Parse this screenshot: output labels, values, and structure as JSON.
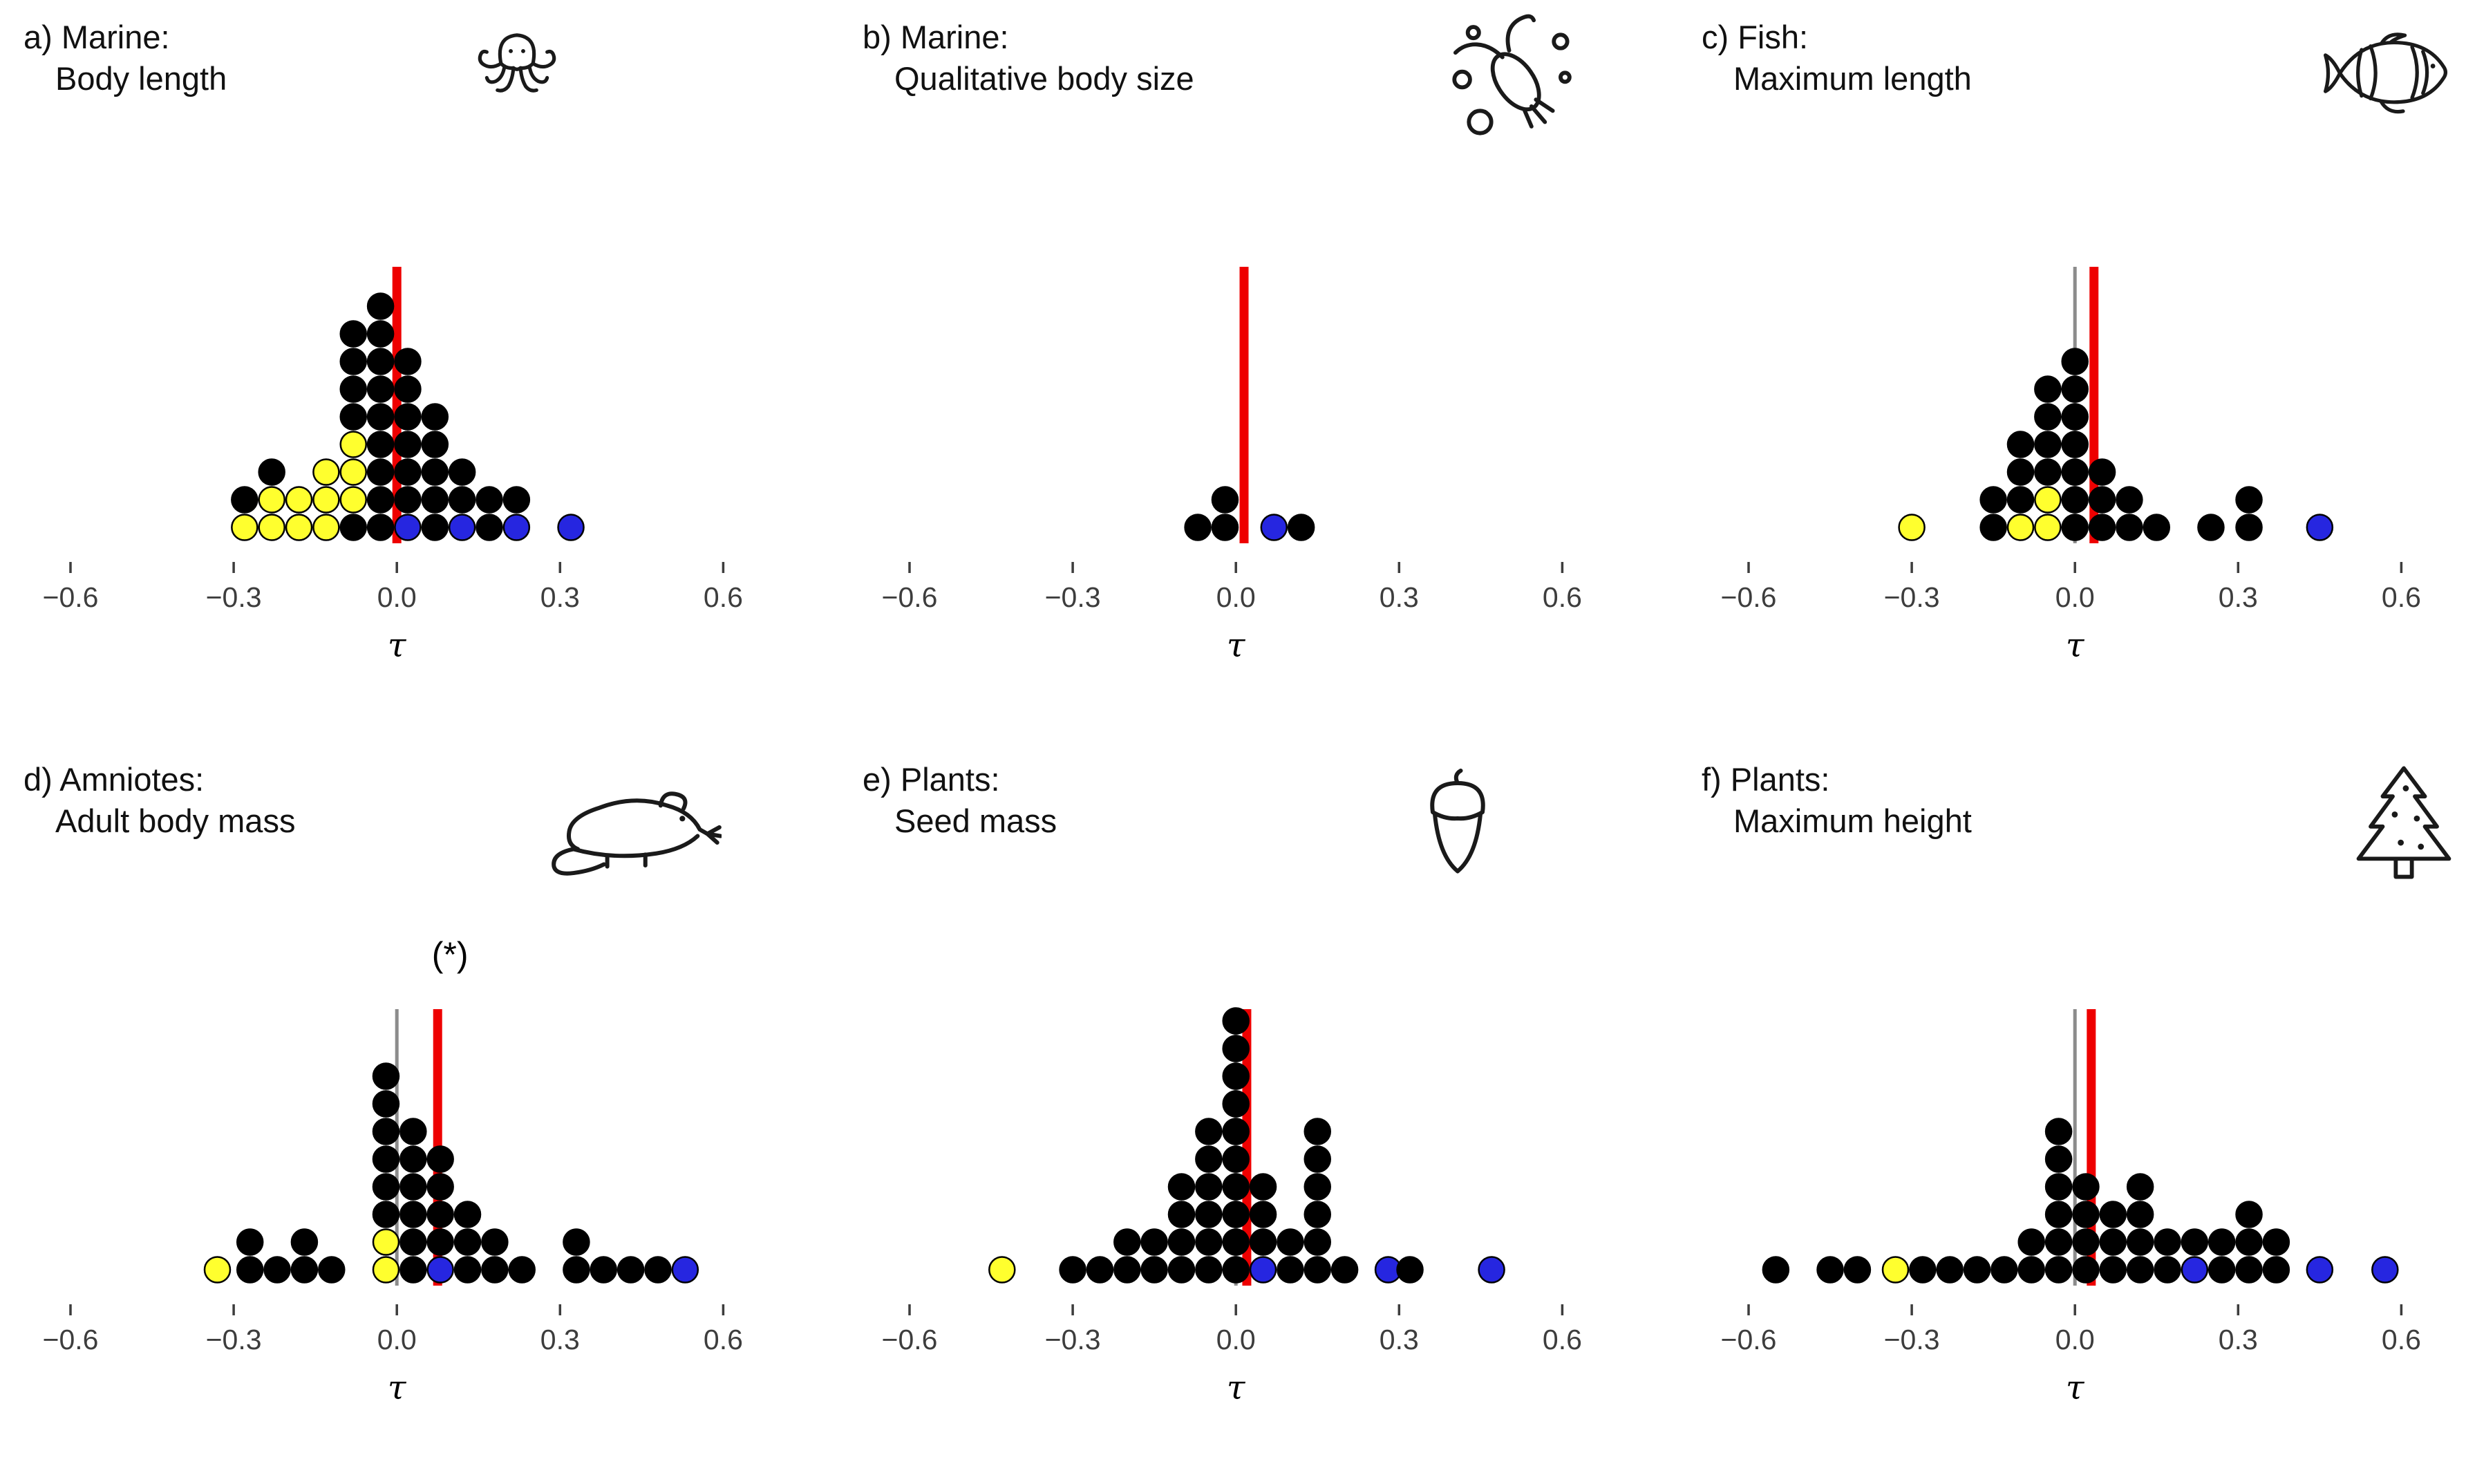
{
  "figure": {
    "tau_symbol": "τ",
    "colors": {
      "black": "#000000",
      "yellow": "#ffff2e",
      "blue": "#2626e0",
      "red_line": "#ee0000",
      "gray_line": "#8c8c8c",
      "tick": "#3d3d3d"
    }
  },
  "chart_data": [
    {
      "type": "scatter",
      "panel": "a",
      "title": "a) Marine:",
      "subtitle": "Body length",
      "icon": "octopus-icon",
      "xlabel": "τ",
      "xlim": [
        -0.75,
        0.7
      ],
      "xticks": [
        -0.6,
        -0.3,
        0.0,
        0.3,
        0.6
      ],
      "xtick_labels": [
        "−0.6",
        "−0.3",
        "0.0",
        "0.3",
        "0.6"
      ],
      "red_line_x": 0.0,
      "gray_line_x": null,
      "annotation": null,
      "annotation_x": null,
      "columns": [
        {
          "x": -0.28,
          "dots": [
            "yellow",
            "black"
          ]
        },
        {
          "x": -0.23,
          "dots": [
            "yellow",
            "yellow",
            "black"
          ]
        },
        {
          "x": -0.18,
          "dots": [
            "yellow",
            "yellow"
          ]
        },
        {
          "x": -0.13,
          "dots": [
            "yellow",
            "yellow",
            "yellow"
          ]
        },
        {
          "x": -0.08,
          "dots": [
            "black",
            "yellow",
            "yellow",
            "yellow",
            "black",
            "black",
            "black",
            "black"
          ]
        },
        {
          "x": -0.03,
          "dots": [
            "black",
            "black",
            "black",
            "black",
            "black",
            "black",
            "black",
            "black",
            "black"
          ]
        },
        {
          "x": 0.02,
          "dots": [
            "blue",
            "black",
            "black",
            "black",
            "black",
            "black",
            "black"
          ]
        },
        {
          "x": 0.07,
          "dots": [
            "black",
            "black",
            "black",
            "black",
            "black"
          ]
        },
        {
          "x": 0.12,
          "dots": [
            "blue",
            "black",
            "black"
          ]
        },
        {
          "x": 0.17,
          "dots": [
            "black",
            "black"
          ]
        },
        {
          "x": 0.22,
          "dots": [
            "blue",
            "black"
          ]
        },
        {
          "x": 0.32,
          "dots": [
            "blue"
          ]
        }
      ]
    },
    {
      "type": "scatter",
      "panel": "b",
      "title": "b) Marine:",
      "subtitle": "Qualitative body size",
      "icon": "plankton-icon",
      "xlabel": "τ",
      "xlim": [
        -0.75,
        0.7
      ],
      "xticks": [
        -0.6,
        -0.3,
        0.0,
        0.3,
        0.6
      ],
      "xtick_labels": [
        "−0.6",
        "−0.3",
        "0.0",
        "0.3",
        "0.6"
      ],
      "red_line_x": 0.015,
      "gray_line_x": null,
      "annotation": null,
      "annotation_x": null,
      "columns": [
        {
          "x": -0.07,
          "dots": [
            "black"
          ]
        },
        {
          "x": -0.02,
          "dots": [
            "black",
            "black"
          ]
        },
        {
          "x": 0.07,
          "dots": [
            "blue"
          ]
        },
        {
          "x": 0.12,
          "dots": [
            "black"
          ]
        }
      ]
    },
    {
      "type": "scatter",
      "panel": "c",
      "title": "c) Fish:",
      "subtitle": "Maximum length",
      "icon": "clownfish-icon",
      "xlabel": "τ",
      "xlim": [
        -0.75,
        0.7
      ],
      "xticks": [
        -0.6,
        -0.3,
        0.0,
        0.3,
        0.6
      ],
      "xtick_labels": [
        "−0.6",
        "−0.3",
        "0.0",
        "0.3",
        "0.6"
      ],
      "red_line_x": 0.035,
      "gray_line_x": 0.0,
      "annotation": null,
      "annotation_x": null,
      "columns": [
        {
          "x": -0.3,
          "dots": [
            "yellow"
          ]
        },
        {
          "x": -0.15,
          "dots": [
            "black",
            "black"
          ]
        },
        {
          "x": -0.1,
          "dots": [
            "yellow",
            "black",
            "black",
            "black"
          ]
        },
        {
          "x": -0.05,
          "dots": [
            "yellow",
            "yellow",
            "black",
            "black",
            "black",
            "black"
          ]
        },
        {
          "x": 0.0,
          "dots": [
            "black",
            "black",
            "black",
            "black",
            "black",
            "black",
            "black"
          ]
        },
        {
          "x": 0.05,
          "dots": [
            "black",
            "black",
            "black"
          ]
        },
        {
          "x": 0.1,
          "dots": [
            "black",
            "black"
          ]
        },
        {
          "x": 0.15,
          "dots": [
            "black"
          ]
        },
        {
          "x": 0.25,
          "dots": [
            "black"
          ]
        },
        {
          "x": 0.32,
          "dots": [
            "black",
            "black"
          ]
        },
        {
          "x": 0.45,
          "dots": [
            "blue"
          ]
        }
      ]
    },
    {
      "type": "scatter",
      "panel": "d",
      "title": "d) Amniotes:",
      "subtitle": "Adult body mass",
      "icon": "mouse-icon",
      "xlabel": "τ",
      "xlim": [
        -0.75,
        0.7
      ],
      "xticks": [
        -0.6,
        -0.3,
        0.0,
        0.3,
        0.6
      ],
      "xtick_labels": [
        "−0.6",
        "−0.3",
        "0.0",
        "0.3",
        "0.6"
      ],
      "red_line_x": 0.075,
      "gray_line_x": 0.0,
      "annotation": "(*)",
      "annotation_x": 0.08,
      "columns": [
        {
          "x": -0.33,
          "dots": [
            "yellow"
          ]
        },
        {
          "x": -0.27,
          "dots": [
            "black",
            "black"
          ]
        },
        {
          "x": -0.22,
          "dots": [
            "black"
          ]
        },
        {
          "x": -0.17,
          "dots": [
            "black",
            "black"
          ]
        },
        {
          "x": -0.12,
          "dots": [
            "black"
          ]
        },
        {
          "x": -0.02,
          "dots": [
            "yellow",
            "yellow",
            "black",
            "black",
            "black",
            "black",
            "black",
            "black"
          ]
        },
        {
          "x": 0.03,
          "dots": [
            "black",
            "black",
            "black",
            "black",
            "black",
            "black"
          ]
        },
        {
          "x": 0.08,
          "dots": [
            "blue",
            "black",
            "black",
            "black",
            "black"
          ]
        },
        {
          "x": 0.13,
          "dots": [
            "black",
            "black",
            "black"
          ]
        },
        {
          "x": 0.18,
          "dots": [
            "black",
            "black"
          ]
        },
        {
          "x": 0.23,
          "dots": [
            "black"
          ]
        },
        {
          "x": 0.33,
          "dots": [
            "black",
            "black"
          ]
        },
        {
          "x": 0.38,
          "dots": [
            "black"
          ]
        },
        {
          "x": 0.43,
          "dots": [
            "black"
          ]
        },
        {
          "x": 0.48,
          "dots": [
            "black"
          ]
        },
        {
          "x": 0.53,
          "dots": [
            "blue"
          ]
        }
      ]
    },
    {
      "type": "scatter",
      "panel": "e",
      "title": "e) Plants:",
      "subtitle": "Seed mass",
      "icon": "acorn-icon",
      "xlabel": "τ",
      "xlim": [
        -0.75,
        0.7
      ],
      "xticks": [
        -0.6,
        -0.3,
        0.0,
        0.3,
        0.6
      ],
      "xtick_labels": [
        "−0.6",
        "−0.3",
        "0.0",
        "0.3",
        "0.6"
      ],
      "red_line_x": 0.02,
      "gray_line_x": 0.0,
      "annotation": null,
      "annotation_x": null,
      "columns": [
        {
          "x": -0.43,
          "dots": [
            "yellow"
          ]
        },
        {
          "x": -0.3,
          "dots": [
            "black"
          ]
        },
        {
          "x": -0.25,
          "dots": [
            "black"
          ]
        },
        {
          "x": -0.2,
          "dots": [
            "black",
            "black"
          ]
        },
        {
          "x": -0.15,
          "dots": [
            "black",
            "black"
          ]
        },
        {
          "x": -0.1,
          "dots": [
            "black",
            "black",
            "black",
            "black"
          ]
        },
        {
          "x": -0.05,
          "dots": [
            "black",
            "black",
            "black",
            "black",
            "black",
            "black"
          ]
        },
        {
          "x": 0.0,
          "dots": [
            "black",
            "black",
            "black",
            "black",
            "black",
            "black",
            "black",
            "black",
            "black",
            "black"
          ]
        },
        {
          "x": 0.05,
          "dots": [
            "blue",
            "black",
            "black",
            "black"
          ]
        },
        {
          "x": 0.1,
          "dots": [
            "black",
            "black"
          ]
        },
        {
          "x": 0.15,
          "dots": [
            "black",
            "black",
            "black",
            "black",
            "black",
            "black"
          ]
        },
        {
          "x": 0.2,
          "dots": [
            "black"
          ]
        },
        {
          "x": 0.28,
          "dots": [
            "blue"
          ]
        },
        {
          "x": 0.32,
          "dots": [
            "black"
          ]
        },
        {
          "x": 0.47,
          "dots": [
            "blue"
          ]
        }
      ]
    },
    {
      "type": "scatter",
      "panel": "f",
      "title": "f) Plants:",
      "subtitle": "Maximum height",
      "icon": "pine-tree-icon",
      "xlabel": "τ",
      "xlim": [
        -0.75,
        0.7
      ],
      "xticks": [
        -0.6,
        -0.3,
        0.0,
        0.3,
        0.6
      ],
      "xtick_labels": [
        "−0.6",
        "−0.3",
        "0.0",
        "0.3",
        "0.6"
      ],
      "red_line_x": 0.03,
      "gray_line_x": 0.0,
      "annotation": null,
      "annotation_x": null,
      "columns": [
        {
          "x": -0.55,
          "dots": [
            "black"
          ]
        },
        {
          "x": -0.45,
          "dots": [
            "black"
          ]
        },
        {
          "x": -0.4,
          "dots": [
            "black"
          ]
        },
        {
          "x": -0.33,
          "dots": [
            "yellow"
          ]
        },
        {
          "x": -0.28,
          "dots": [
            "black"
          ]
        },
        {
          "x": -0.23,
          "dots": [
            "black"
          ]
        },
        {
          "x": -0.18,
          "dots": [
            "black"
          ]
        },
        {
          "x": -0.13,
          "dots": [
            "black"
          ]
        },
        {
          "x": -0.08,
          "dots": [
            "black",
            "black"
          ]
        },
        {
          "x": -0.03,
          "dots": [
            "black",
            "black",
            "black",
            "black",
            "black",
            "black"
          ]
        },
        {
          "x": 0.02,
          "dots": [
            "black",
            "black",
            "black",
            "black"
          ]
        },
        {
          "x": 0.07,
          "dots": [
            "black",
            "black",
            "black"
          ]
        },
        {
          "x": 0.12,
          "dots": [
            "black",
            "black",
            "black",
            "black"
          ]
        },
        {
          "x": 0.17,
          "dots": [
            "black",
            "black"
          ]
        },
        {
          "x": 0.22,
          "dots": [
            "blue",
            "black"
          ]
        },
        {
          "x": 0.27,
          "dots": [
            "black",
            "black"
          ]
        },
        {
          "x": 0.32,
          "dots": [
            "black",
            "black",
            "black"
          ]
        },
        {
          "x": 0.37,
          "dots": [
            "black",
            "black"
          ]
        },
        {
          "x": 0.45,
          "dots": [
            "blue"
          ]
        },
        {
          "x": 0.57,
          "dots": [
            "blue"
          ]
        }
      ]
    }
  ]
}
